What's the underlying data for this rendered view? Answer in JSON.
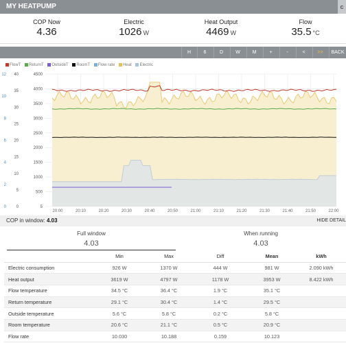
{
  "app": {
    "title": "MY HEATPUMP",
    "corner": "c"
  },
  "stats": [
    {
      "label": "COP Now",
      "value": "4.36",
      "unit": ""
    },
    {
      "label": "Electric",
      "value": "1026",
      "unit": "W"
    },
    {
      "label": "Heat Output",
      "value": "4469",
      "unit": "W"
    },
    {
      "label": "Flow",
      "value": "35.5",
      "unit": "°C"
    }
  ],
  "toolbar": [
    "H",
    "6",
    "D",
    "W",
    "M",
    "+",
    "-",
    "<",
    ">>",
    "BACK"
  ],
  "toolbar_highlight": ">>",
  "legend": [
    {
      "label": "FlowT",
      "color": "#c0392b"
    },
    {
      "label": "ReturnT",
      "color": "#5aab4a"
    },
    {
      "label": "OutsideT",
      "color": "#7a5ad6"
    },
    {
      "label": "RoomT",
      "color": "#111111"
    },
    {
      "label": "Flow rate",
      "color": "#7fb0d8"
    },
    {
      "label": "Heat",
      "color": "#e9bf5a"
    },
    {
      "label": "Electric",
      "color": "#a8c4e0"
    }
  ],
  "chart_data": {
    "type": "line",
    "x_ticks": [
      "20:00",
      "20:10",
      "20:20",
      "20:30",
      "20:40",
      "20:50",
      "21:00",
      "21:10",
      "21:20",
      "21:30",
      "21:40",
      "21:50",
      "22:00"
    ],
    "y_left_ticks": [
      "5",
      "500",
      "1000",
      "1500",
      "2000",
      "2500",
      "3000",
      "3500",
      "4000",
      "4500"
    ],
    "y_mid_ticks": [
      "0",
      "5",
      "10",
      "15",
      "20",
      "25",
      "30",
      "35",
      "40"
    ],
    "y_axis_ticks": [
      "0",
      "2",
      "4",
      "6",
      "8",
      "10",
      "12"
    ],
    "ylim_power": [
      0,
      4800
    ],
    "ylim_temp": [
      0,
      40
    ],
    "series": [
      {
        "name": "FlowT",
        "axis": "temp",
        "level": 35.1,
        "color": "#c0392b"
      },
      {
        "name": "ReturnT",
        "axis": "temp",
        "level": 29.5,
        "color": "#5aab4a"
      },
      {
        "name": "RoomT",
        "axis": "temp",
        "level": 20.9,
        "color": "#111111"
      },
      {
        "name": "OutsideT",
        "axis": "temp",
        "level": 5.8,
        "color": "#7a5ad6",
        "end": "21:00"
      },
      {
        "name": "Heat",
        "axis": "power",
        "level": 3953,
        "color": "#e9bf5a"
      },
      {
        "name": "Electric",
        "axis": "power",
        "level": 981,
        "color": "#a8c4e0"
      }
    ]
  },
  "cop": {
    "label": "COP in window:",
    "value": "4.03",
    "hide": "HIDE DETAIL"
  },
  "windows": [
    {
      "title": "Full window",
      "value": "4.03"
    },
    {
      "title": "When running",
      "value": "4.03"
    }
  ],
  "table": {
    "headers": [
      "",
      "Min",
      "Max",
      "Diff",
      "Mean",
      "kWh"
    ],
    "rows": [
      [
        "Electric consumption",
        "926 W",
        "1370 W",
        "444 W",
        "981 W",
        "2.090 kWh"
      ],
      [
        "Heat output",
        "3619 W",
        "4797 W",
        "1178 W",
        "3953 W",
        "8.422 kWh"
      ],
      [
        "Flow temperature",
        "34.5 °C",
        "36.4 °C",
        "1.9 °C",
        "35.1 °C",
        ""
      ],
      [
        "Return temperature",
        "29.1 °C",
        "30.4 °C",
        "1.4 °C",
        "29.5 °C",
        ""
      ],
      [
        "Outside temperature",
        "5.6 °C",
        "5.8 °C",
        "0.2 °C",
        "5.8 °C",
        ""
      ],
      [
        "Room temperature",
        "20.6 °C",
        "21.1 °C",
        "0.5 °C",
        "20.9 °C",
        ""
      ],
      [
        "Flow rate",
        "10.030",
        "10.188",
        "0.159",
        "10.123",
        ""
      ]
    ]
  }
}
